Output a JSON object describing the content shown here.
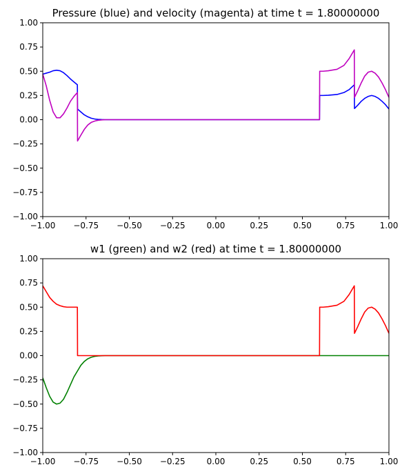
{
  "chart_data": [
    {
      "type": "line",
      "title": "Pressure (blue) and velocity (magenta) at time t =      1.80000000",
      "xlabel": "",
      "ylabel": "",
      "xlim": [
        -1.0,
        1.0
      ],
      "ylim": [
        -1.0,
        1.0
      ],
      "xticks": [
        "−1.00",
        "−0.75",
        "−0.50",
        "−0.25",
        "0.00",
        "0.25",
        "0.50",
        "0.75",
        "1.00"
      ],
      "yticks": [
        "−1.00",
        "−0.75",
        "−0.50",
        "−0.25",
        "0.00",
        "0.25",
        "0.50",
        "0.75",
        "1.00"
      ],
      "grid": false,
      "series": [
        {
          "color": "#0000ff",
          "x": [
            -1.0,
            -0.98,
            -0.96,
            -0.94,
            -0.92,
            -0.9,
            -0.88,
            -0.86,
            -0.84,
            -0.82,
            -0.8,
            -0.799,
            -0.78,
            -0.76,
            -0.74,
            -0.72,
            -0.7,
            -0.68,
            -0.66,
            -0.64,
            -0.6,
            -0.4,
            -0.2,
            0.0,
            0.2,
            0.4,
            0.599,
            0.6,
            0.62,
            0.65,
            0.7,
            0.74,
            0.77,
            0.8,
            0.801,
            0.82,
            0.84,
            0.86,
            0.88,
            0.9,
            0.92,
            0.94,
            0.96,
            0.98,
            1.0
          ],
          "y": [
            0.47,
            0.48,
            0.49,
            0.505,
            0.51,
            0.505,
            0.485,
            0.455,
            0.42,
            0.39,
            0.36,
            0.11,
            0.08,
            0.05,
            0.03,
            0.015,
            0.007,
            0.003,
            0.001,
            0.0,
            0.0,
            0.0,
            0.0,
            0.0,
            0.0,
            0.0,
            0.0,
            0.25,
            0.25,
            0.252,
            0.26,
            0.28,
            0.31,
            0.36,
            0.115,
            0.15,
            0.19,
            0.22,
            0.24,
            0.25,
            0.24,
            0.22,
            0.19,
            0.155,
            0.11
          ]
        },
        {
          "color": "#bf00bf",
          "x": [
            -1.0,
            -0.98,
            -0.96,
            -0.94,
            -0.92,
            -0.9,
            -0.88,
            -0.86,
            -0.84,
            -0.82,
            -0.8,
            -0.799,
            -0.78,
            -0.76,
            -0.74,
            -0.72,
            -0.7,
            -0.68,
            -0.66,
            -0.64,
            -0.6,
            -0.4,
            -0.2,
            0.0,
            0.2,
            0.4,
            0.599,
            0.6,
            0.62,
            0.65,
            0.7,
            0.74,
            0.77,
            0.8,
            0.801,
            0.82,
            0.84,
            0.86,
            0.88,
            0.9,
            0.92,
            0.94,
            0.96,
            0.98,
            1.0
          ],
          "y": [
            0.47,
            0.35,
            0.2,
            0.08,
            0.02,
            0.02,
            0.06,
            0.12,
            0.19,
            0.24,
            0.28,
            -0.22,
            -0.16,
            -0.1,
            -0.055,
            -0.028,
            -0.014,
            -0.006,
            -0.002,
            0.0,
            0.0,
            0.0,
            0.0,
            0.0,
            0.0,
            0.0,
            0.0,
            0.5,
            0.5,
            0.505,
            0.52,
            0.56,
            0.63,
            0.72,
            0.23,
            0.3,
            0.38,
            0.45,
            0.49,
            0.5,
            0.48,
            0.44,
            0.38,
            0.31,
            0.23
          ]
        }
      ]
    },
    {
      "type": "line",
      "title": "w1 (green) and w2 (red) at time t =      1.80000000",
      "xlabel": "",
      "ylabel": "",
      "xlim": [
        -1.0,
        1.0
      ],
      "ylim": [
        -1.0,
        1.0
      ],
      "xticks": [
        "−1.00",
        "−0.75",
        "−0.50",
        "−0.25",
        "0.00",
        "0.25",
        "0.50",
        "0.75",
        "1.00"
      ],
      "yticks": [
        "−1.00",
        "−0.75",
        "−0.50",
        "−0.25",
        "0.00",
        "0.25",
        "0.50",
        "0.75",
        "1.00"
      ],
      "grid": false,
      "series": [
        {
          "color": "#008000",
          "x": [
            -1.0,
            -0.98,
            -0.96,
            -0.94,
            -0.92,
            -0.9,
            -0.88,
            -0.86,
            -0.84,
            -0.82,
            -0.8,
            -0.78,
            -0.76,
            -0.74,
            -0.72,
            -0.7,
            -0.68,
            -0.66,
            -0.64,
            -0.6,
            -0.4,
            -0.2,
            0.0,
            0.2,
            0.4,
            0.6,
            0.8,
            1.0
          ],
          "y": [
            -0.23,
            -0.33,
            -0.42,
            -0.48,
            -0.5,
            -0.49,
            -0.45,
            -0.38,
            -0.3,
            -0.22,
            -0.16,
            -0.1,
            -0.06,
            -0.033,
            -0.017,
            -0.008,
            -0.003,
            -0.001,
            0.0,
            0.0,
            0.0,
            0.0,
            0.0,
            0.0,
            0.0,
            0.0,
            0.0,
            0.0
          ]
        },
        {
          "color": "#ff0000",
          "x": [
            -1.0,
            -0.98,
            -0.96,
            -0.94,
            -0.92,
            -0.9,
            -0.88,
            -0.86,
            -0.84,
            -0.82,
            -0.8,
            -0.799,
            -0.6,
            -0.4,
            -0.2,
            0.0,
            0.2,
            0.4,
            0.599,
            0.6,
            0.62,
            0.65,
            0.7,
            0.74,
            0.77,
            0.8,
            0.801,
            0.82,
            0.84,
            0.86,
            0.88,
            0.9,
            0.92,
            0.94,
            0.96,
            0.98,
            1.0
          ],
          "y": [
            0.72,
            0.66,
            0.6,
            0.56,
            0.53,
            0.515,
            0.505,
            0.5,
            0.5,
            0.5,
            0.5,
            0.0,
            0.0,
            0.0,
            0.0,
            0.0,
            0.0,
            0.0,
            0.0,
            0.5,
            0.5,
            0.505,
            0.52,
            0.56,
            0.63,
            0.72,
            0.23,
            0.3,
            0.38,
            0.45,
            0.49,
            0.5,
            0.48,
            0.44,
            0.38,
            0.31,
            0.23
          ]
        }
      ]
    }
  ]
}
